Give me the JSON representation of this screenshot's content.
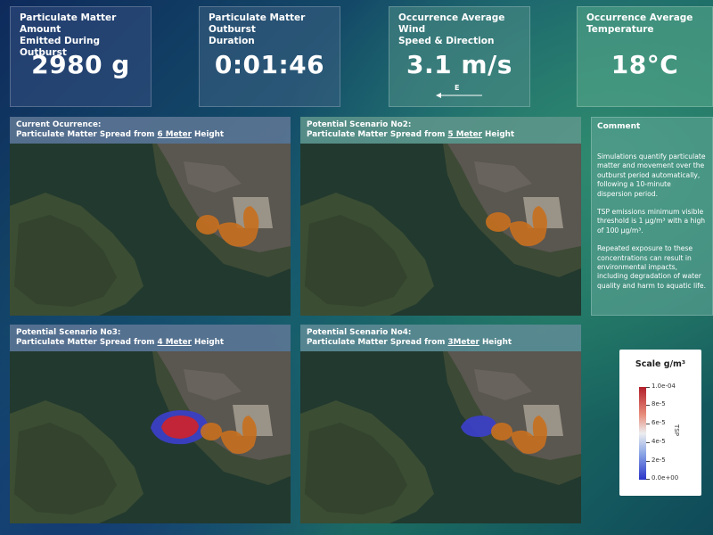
{
  "kpis": [
    {
      "title_line1": "Particulate Matter Amount",
      "title_line2": "Emitted During Outburst",
      "value": "2980 g"
    },
    {
      "title_line1": "Particulate Matter Outburst",
      "title_line2": "Duration",
      "value": "0:01:46"
    },
    {
      "title_line1": "Occurrence Average Wind",
      "title_line2": "Speed & Direction",
      "value": "3.1 m/s",
      "wind_direction": "E"
    },
    {
      "title_line1": "Occurrence Average",
      "title_line2": "Temperature",
      "value": "18°C"
    }
  ],
  "panels": [
    {
      "title": "Current Ocurrence:",
      "sub_prefix": "Particulate Matter Spread from ",
      "height": "6 Meter",
      "sub_suffix": " Height"
    },
    {
      "title": "Potential Scenario No2:",
      "sub_prefix": "Particulate Matter Spread from ",
      "height": "5 Meter",
      "sub_suffix": " Height"
    },
    {
      "title": "Potential Scenario No3:",
      "sub_prefix": "Particulate Matter Spread from ",
      "height": "4 Meter",
      "sub_suffix": " Height"
    },
    {
      "title": "Potential Scenario No4:",
      "sub_prefix": "Particulate Matter Spread from ",
      "height": "3Meter",
      "sub_suffix": " Height"
    }
  ],
  "comment": {
    "title": "Comment",
    "paragraphs": [
      "Simulations quantify particulate matter and movement over the outburst period automatically, following a 10-minute dispersion period.",
      "TSP emissions minimum visible threshold is 1 µg/m³ with a high of 100 µg/m³.",
      "Repeated exposure to these concentrations can result in environmental impacts, including degradation of water quality and harm to aquatic life."
    ]
  },
  "legend": {
    "title": "Scale g/m³",
    "axis_label": "TSP",
    "ticks": [
      "1.0e-04",
      "8e-5",
      "6e-5",
      "4e-5",
      "2e-5",
      "0.0e+00"
    ]
  },
  "colors": {
    "water": "#22392f",
    "land": "#3d4a35",
    "industrial": "#5a5650",
    "plume_orange": "#c8701e",
    "plume_red": "#c8242f",
    "plume_blue": "#3b3fc4"
  }
}
